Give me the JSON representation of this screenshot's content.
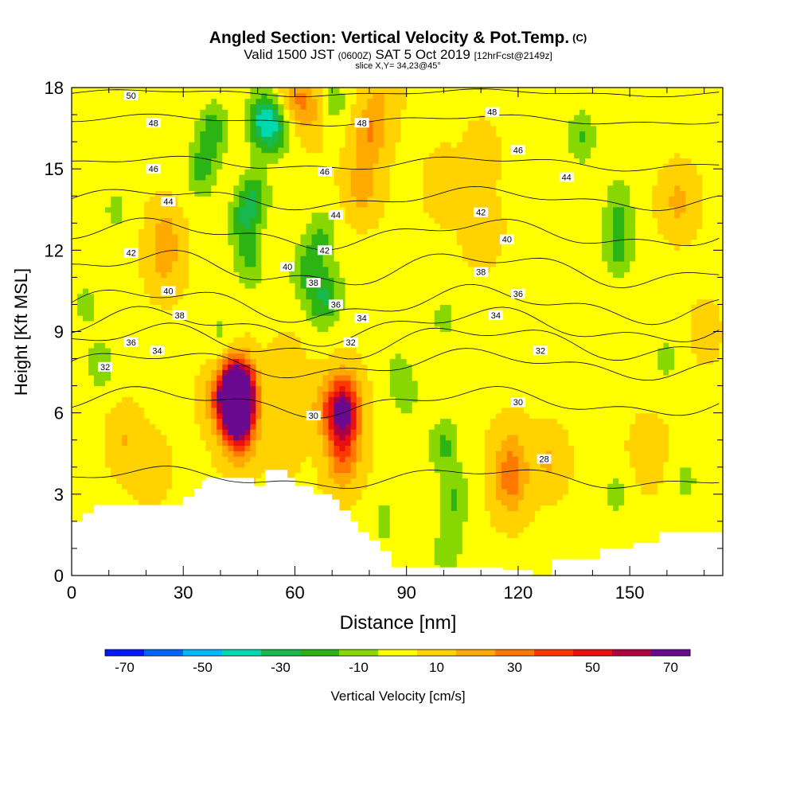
{
  "header": {
    "title": "Angled Section: Vertical Velocity & Pot.Temp.",
    "title_tag": "(C)",
    "valid_prefix": "Valid 1500 JST",
    "valid_zulu": "(0600Z)",
    "valid_date": "SAT 5 Oct 2019",
    "valid_fcst": "[12hrFcst@2149z]",
    "slice": "slice X,Y= 34,23@45°"
  },
  "chart_data": {
    "type": "heatmap",
    "xlabel": "Distance [nm]",
    "ylabel": "Height [Kft MSL]",
    "xlim": [
      0,
      175
    ],
    "ylim": [
      0,
      18
    ],
    "x_ticks": [
      0,
      30,
      60,
      90,
      120,
      150
    ],
    "y_ticks": [
      0,
      3,
      6,
      9,
      12,
      15,
      18
    ],
    "colorbar": {
      "label": "Vertical Velocity [cm/s]",
      "tick_labels": [
        -70,
        -50,
        -30,
        -10,
        10,
        30,
        50,
        70
      ],
      "levels": [
        -75,
        -65,
        -55,
        -45,
        -35,
        -25,
        -15,
        -5,
        5,
        15,
        25,
        35,
        45,
        55,
        65,
        75
      ],
      "colors": [
        "#0018ff",
        "#0066ff",
        "#00b8ff",
        "#00d8b0",
        "#18b850",
        "#2cb414",
        "#88d800",
        "#ffff00",
        "#ffd200",
        "#ffaa00",
        "#ff7800",
        "#ff3800",
        "#e81010",
        "#b00040",
        "#6a0a90"
      ]
    },
    "terrain": [
      [
        0,
        2
      ],
      [
        3,
        2
      ],
      [
        3,
        2.3
      ],
      [
        6,
        2.3
      ],
      [
        6,
        2.6
      ],
      [
        30,
        2.6
      ],
      [
        30,
        2.9
      ],
      [
        33,
        2.9
      ],
      [
        33,
        3.2
      ],
      [
        35,
        3.2
      ],
      [
        35,
        3.5
      ],
      [
        36,
        3.5
      ],
      [
        36,
        3.6
      ],
      [
        49,
        3.6
      ],
      [
        49,
        3.3
      ],
      [
        52,
        3.3
      ],
      [
        52,
        3.9
      ],
      [
        58,
        3.9
      ],
      [
        58,
        3.6
      ],
      [
        60,
        3.6
      ],
      [
        60,
        3.3
      ],
      [
        65,
        3.3
      ],
      [
        65,
        3
      ],
      [
        70,
        3
      ],
      [
        70,
        2.8
      ],
      [
        72,
        2.8
      ],
      [
        72,
        2.4
      ],
      [
        75,
        2.4
      ],
      [
        75,
        2
      ],
      [
        77,
        2
      ],
      [
        77,
        1.6
      ],
      [
        80,
        1.6
      ],
      [
        80,
        1.3
      ],
      [
        83,
        1.3
      ],
      [
        83,
        0.9
      ],
      [
        86,
        0.9
      ],
      [
        86,
        0.3
      ],
      [
        116,
        0.3
      ],
      [
        116,
        0.2
      ],
      [
        124,
        0.2
      ],
      [
        124,
        0
      ],
      [
        129,
        0
      ],
      [
        129,
        0.6
      ],
      [
        142,
        0.6
      ],
      [
        142,
        1
      ],
      [
        151,
        1
      ],
      [
        151,
        1.2
      ],
      [
        158,
        1.2
      ],
      [
        158,
        1.6
      ],
      [
        175,
        1.6
      ]
    ],
    "isentropes": [
      {
        "level": 50,
        "y0": 17.8,
        "amp": 0.1
      },
      {
        "level": 48,
        "y0": 16.8,
        "amp": 0.15
      },
      {
        "level": 46,
        "y0": 15.2,
        "amp": 0.2
      },
      {
        "level": 44,
        "y0": 13.9,
        "amp": 0.3
      },
      {
        "level": 42,
        "y0": 12.6,
        "amp": 0.4
      },
      {
        "level": 40,
        "y0": 11.3,
        "amp": 0.5
      },
      {
        "level": 38,
        "y0": 10.0,
        "amp": 0.5
      },
      {
        "level": 36,
        "y0": 9.2,
        "amp": 0.5
      },
      {
        "level": 34,
        "y0": 8.6,
        "amp": 0.5
      },
      {
        "level": 32,
        "y0": 7.8,
        "amp": 0.4
      },
      {
        "level": 30,
        "y0": 6.4,
        "amp": 0.4
      },
      {
        "level": 28,
        "y0": 3.6,
        "amp": 0.3
      }
    ],
    "isentrope_labels": [
      {
        "text": "50",
        "x": 16,
        "y": 17.7
      },
      {
        "text": "48",
        "x": 22,
        "y": 16.7
      },
      {
        "text": "46",
        "x": 22,
        "y": 15.0
      },
      {
        "text": "44",
        "x": 26,
        "y": 13.8
      },
      {
        "text": "42",
        "x": 16,
        "y": 11.9
      },
      {
        "text": "40",
        "x": 26,
        "y": 10.5
      },
      {
        "text": "38",
        "x": 29,
        "y": 9.6
      },
      {
        "text": "36",
        "x": 16,
        "y": 8.6
      },
      {
        "text": "34",
        "x": 23,
        "y": 8.3
      },
      {
        "text": "32",
        "x": 9,
        "y": 7.7
      },
      {
        "text": "48",
        "x": 78,
        "y": 16.7
      },
      {
        "text": "46",
        "x": 68,
        "y": 14.9
      },
      {
        "text": "44",
        "x": 71,
        "y": 13.3
      },
      {
        "text": "42",
        "x": 68,
        "y": 12.0
      },
      {
        "text": "40",
        "x": 58,
        "y": 11.4
      },
      {
        "text": "38",
        "x": 65,
        "y": 10.8
      },
      {
        "text": "36",
        "x": 71,
        "y": 10.0
      },
      {
        "text": "34",
        "x": 78,
        "y": 9.5
      },
      {
        "text": "32",
        "x": 75,
        "y": 8.6
      },
      {
        "text": "30",
        "x": 65,
        "y": 5.9
      },
      {
        "text": "48",
        "x": 113,
        "y": 17.1
      },
      {
        "text": "46",
        "x": 120,
        "y": 15.7
      },
      {
        "text": "44",
        "x": 133,
        "y": 14.7
      },
      {
        "text": "42",
        "x": 110,
        "y": 13.4
      },
      {
        "text": "40",
        "x": 117,
        "y": 12.4
      },
      {
        "text": "38",
        "x": 110,
        "y": 11.2
      },
      {
        "text": "36",
        "x": 120,
        "y": 10.4
      },
      {
        "text": "34",
        "x": 114,
        "y": 9.6
      },
      {
        "text": "32",
        "x": 126,
        "y": 8.3
      },
      {
        "text": "30",
        "x": 120,
        "y": 6.4
      },
      {
        "text": "28",
        "x": 127,
        "y": 4.3
      }
    ],
    "velocity_cells": [
      {
        "x": 44.5,
        "y": 6.6,
        "value": 72
      },
      {
        "x": 44.5,
        "y": 7.0,
        "value": 58
      },
      {
        "x": 44.5,
        "y": 6.2,
        "value": 55
      },
      {
        "x": 73,
        "y": 5.6,
        "value": 48
      },
      {
        "x": 73,
        "y": 6.5,
        "value": 42
      },
      {
        "x": 45,
        "y": 5.2,
        "value": 38
      },
      {
        "x": 40,
        "y": 6.5,
        "value": 22
      },
      {
        "x": 73,
        "y": 4.2,
        "value": 28
      },
      {
        "x": 68,
        "y": 6.2,
        "value": 18
      },
      {
        "x": 58,
        "y": 7.5,
        "value": 14
      },
      {
        "x": 57,
        "y": 5.2,
        "value": 15
      },
      {
        "x": 14,
        "y": 5.0,
        "value": 15
      },
      {
        "x": 21,
        "y": 4.0,
        "value": 12
      },
      {
        "x": 60,
        "y": 17.6,
        "value": 24
      },
      {
        "x": 65,
        "y": 17.2,
        "value": 18
      },
      {
        "x": 80,
        "y": 16.3,
        "value": 25
      },
      {
        "x": 78,
        "y": 14.4,
        "value": 22
      },
      {
        "x": 83,
        "y": 17.6,
        "value": 14
      },
      {
        "x": 100,
        "y": 14.4,
        "value": 12
      },
      {
        "x": 110,
        "y": 12.8,
        "value": 14
      },
      {
        "x": 25,
        "y": 12.6,
        "value": 18
      },
      {
        "x": 25,
        "y": 11.5,
        "value": 15
      },
      {
        "x": 118,
        "y": 4.5,
        "value": 20
      },
      {
        "x": 118,
        "y": 3.3,
        "value": 26
      },
      {
        "x": 128,
        "y": 4.2,
        "value": 16
      },
      {
        "x": 163,
        "y": 13.8,
        "value": 18
      },
      {
        "x": 155,
        "y": 4.5,
        "value": 14
      },
      {
        "x": 38,
        "y": 16.5,
        "value": -20
      },
      {
        "x": 35,
        "y": 15.0,
        "value": -18
      },
      {
        "x": 46,
        "y": 13.0,
        "value": -18
      },
      {
        "x": 49,
        "y": 14.0,
        "value": -22
      },
      {
        "x": 51,
        "y": 16.8,
        "value": -30
      },
      {
        "x": 55,
        "y": 16.5,
        "value": -24
      },
      {
        "x": 48,
        "y": 11.5,
        "value": -14
      },
      {
        "x": 63,
        "y": 11.2,
        "value": -18
      },
      {
        "x": 67,
        "y": 12.5,
        "value": -16
      },
      {
        "x": 67,
        "y": 10.0,
        "value": -15
      },
      {
        "x": 70,
        "y": 17.5,
        "value": -12
      },
      {
        "x": 100,
        "y": 4.8,
        "value": -18
      },
      {
        "x": 103,
        "y": 2.8,
        "value": -16
      },
      {
        "x": 101,
        "y": 0.9,
        "value": -12
      },
      {
        "x": 137,
        "y": 16.2,
        "value": -16
      },
      {
        "x": 147,
        "y": 12.0,
        "value": -18
      },
      {
        "x": 147,
        "y": 13.7,
        "value": -14
      },
      {
        "x": 160,
        "y": 8.0,
        "value": -8
      },
      {
        "x": 8,
        "y": 7.8,
        "value": -12
      },
      {
        "x": 4,
        "y": 10.0,
        "value": -8
      },
      {
        "x": 12,
        "y": 13.5,
        "value": -8
      },
      {
        "x": 70,
        "y": 10.5,
        "value": -10
      },
      {
        "x": 88,
        "y": 7.5,
        "value": -8
      },
      {
        "x": 100,
        "y": 9.5,
        "value": -8
      },
      {
        "x": 40,
        "y": 9.0,
        "value": -6
      },
      {
        "x": 90,
        "y": 6.5,
        "value": -6
      },
      {
        "x": 146,
        "y": 3.0,
        "value": -8
      },
      {
        "x": 165,
        "y": 3.5,
        "value": -8
      },
      {
        "x": 3,
        "y": 4.5,
        "value": -4
      },
      {
        "x": 170,
        "y": 9.0,
        "value": 8
      },
      {
        "x": 110,
        "y": 15.5,
        "value": 10
      },
      {
        "x": 84,
        "y": 2.0,
        "value": -8
      }
    ]
  }
}
